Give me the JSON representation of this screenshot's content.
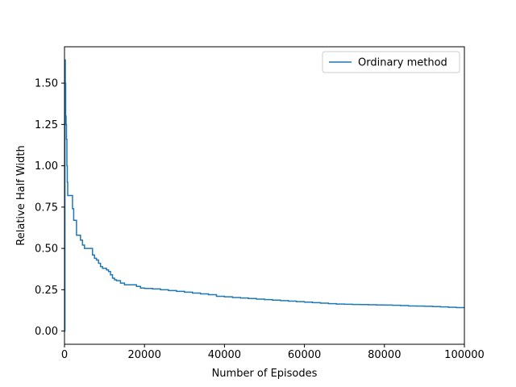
{
  "chart_data": {
    "type": "line",
    "title": "",
    "xlabel": "Number of Episodes",
    "ylabel": "Relative Half Width",
    "xlim": [
      0,
      100000
    ],
    "ylim": [
      -0.08,
      1.72
    ],
    "xticks": [
      0,
      20000,
      40000,
      60000,
      80000,
      100000
    ],
    "xtick_labels": [
      "0",
      "20000",
      "40000",
      "60000",
      "80000",
      "100000"
    ],
    "yticks": [
      0.0,
      0.25,
      0.5,
      0.75,
      1.0,
      1.25,
      1.5
    ],
    "ytick_labels": [
      "0.00",
      "0.25",
      "0.50",
      "0.75",
      "1.00",
      "1.25",
      "1.50"
    ],
    "grid": false,
    "legend_position": "top-right",
    "series": [
      {
        "name": "Ordinary method",
        "color": "#1f77b4",
        "step": true,
        "x": [
          0,
          100,
          200,
          300,
          400,
          500,
          600,
          700,
          800,
          900,
          1000,
          1200,
          1500,
          2000,
          2300,
          2600,
          3000,
          3500,
          4000,
          4500,
          5000,
          5500,
          6000,
          7000,
          7500,
          8000,
          8500,
          9000,
          9500,
          10000,
          10500,
          11000,
          11500,
          12000,
          12500,
          13000,
          14000,
          15000,
          16000,
          17000,
          18000,
          19000,
          20000,
          22000,
          24000,
          26000,
          28000,
          30000,
          32000,
          34000,
          36000,
          38000,
          40000,
          42000,
          44000,
          46000,
          48000,
          50000,
          52000,
          54000,
          56000,
          58000,
          60000,
          62000,
          64000,
          66000,
          68000,
          70000,
          72000,
          74000,
          76000,
          78000,
          80000,
          82000,
          84000,
          86000,
          88000,
          90000,
          92000,
          94000,
          96000,
          98000,
          100000
        ],
        "y": [
          0.0,
          1.64,
          1.5,
          1.3,
          1.25,
          1.16,
          1.0,
          0.9,
          0.82,
          0.82,
          0.82,
          0.82,
          0.82,
          0.74,
          0.67,
          0.67,
          0.58,
          0.58,
          0.55,
          0.52,
          0.5,
          0.5,
          0.5,
          0.46,
          0.44,
          0.43,
          0.41,
          0.39,
          0.38,
          0.38,
          0.37,
          0.36,
          0.34,
          0.32,
          0.31,
          0.305,
          0.29,
          0.28,
          0.28,
          0.28,
          0.27,
          0.26,
          0.258,
          0.255,
          0.25,
          0.245,
          0.24,
          0.235,
          0.23,
          0.225,
          0.22,
          0.21,
          0.207,
          0.203,
          0.2,
          0.197,
          0.193,
          0.19,
          0.187,
          0.184,
          0.181,
          0.178,
          0.175,
          0.172,
          0.169,
          0.166,
          0.163,
          0.162,
          0.161,
          0.16,
          0.159,
          0.158,
          0.157,
          0.156,
          0.154,
          0.152,
          0.151,
          0.15,
          0.148,
          0.146,
          0.144,
          0.142,
          0.141
        ]
      }
    ]
  }
}
